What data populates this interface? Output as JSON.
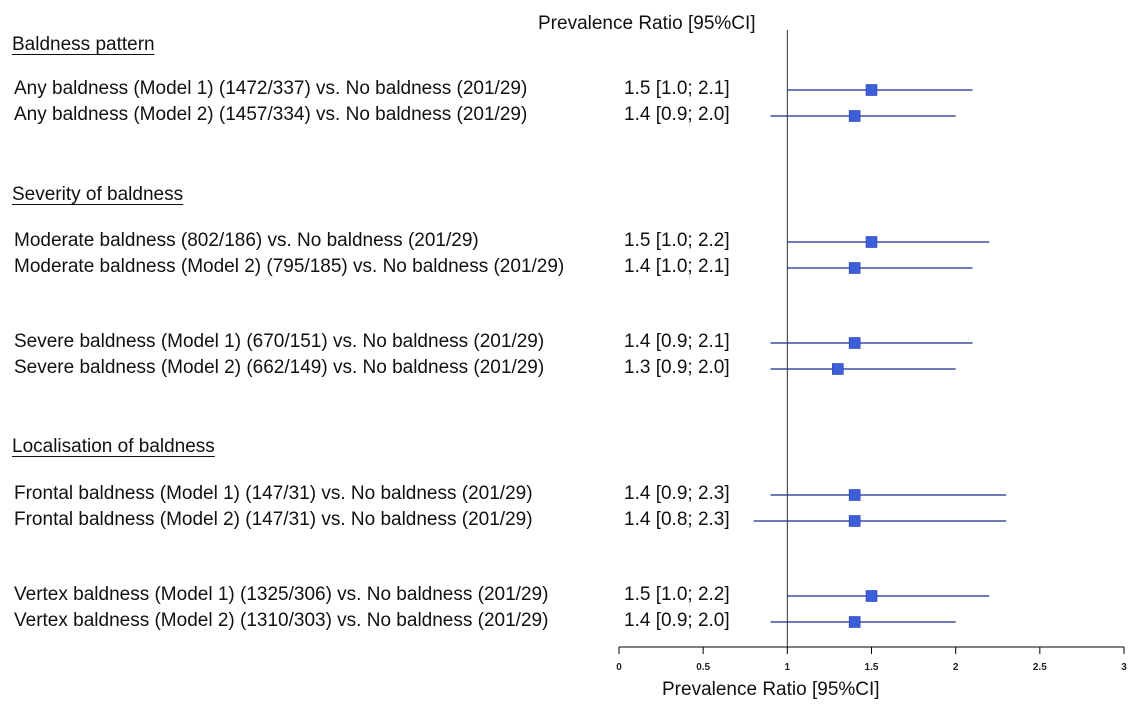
{
  "chart_data": {
    "type": "forest",
    "title": "Prevalence Ratio [95%CI]",
    "xlabel": "Prevalence Ratio [95%CI]",
    "xlim": [
      0,
      3
    ],
    "xticks": [
      "0",
      "0.5",
      "1",
      "1.5",
      "2",
      "2.5",
      "3"
    ],
    "reference_line": 1,
    "marker_color": "#3a5fd9",
    "line_color": "#1a2a8a",
    "sections": [
      {
        "heading": "Baldness pattern",
        "rows": [
          {
            "label": "Any baldness (Model 1) (1472/337) vs. No baldness (201/29)",
            "ci_text": "1.5 [1.0; 2.1]",
            "pr": 1.5,
            "lo": 1.0,
            "hi": 2.1
          },
          {
            "label": "Any baldness (Model 2) (1457/334) vs. No baldness (201/29)",
            "ci_text": "1.4 [0.9; 2.0]",
            "pr": 1.4,
            "lo": 0.9,
            "hi": 2.0
          }
        ]
      },
      {
        "heading": "Severity of baldness",
        "rows": [
          {
            "label": "Moderate baldness (802/186) vs. No baldness (201/29)",
            "ci_text": "1.5 [1.0; 2.2]",
            "pr": 1.5,
            "lo": 1.0,
            "hi": 2.2
          },
          {
            "label": "Moderate baldness (Model 2) (795/185) vs. No baldness (201/29)",
            "ci_text": "1.4 [1.0; 2.1]",
            "pr": 1.4,
            "lo": 1.0,
            "hi": 2.1
          },
          {
            "label": "Severe baldness (Model 1) (670/151) vs. No baldness (201/29)",
            "ci_text": "1.4 [0.9; 2.1]",
            "pr": 1.4,
            "lo": 0.9,
            "hi": 2.1
          },
          {
            "label": "Severe baldness (Model 2) (662/149) vs. No baldness (201/29)",
            "ci_text": "1.3 [0.9; 2.0]",
            "pr": 1.3,
            "lo": 0.9,
            "hi": 2.0
          }
        ]
      },
      {
        "heading": "Localisation of baldness",
        "rows": [
          {
            "label": "Frontal baldness (Model 1) (147/31) vs. No baldness (201/29)",
            "ci_text": "1.4 [0.9; 2.3]",
            "pr": 1.4,
            "lo": 0.9,
            "hi": 2.3
          },
          {
            "label": "Frontal baldness (Model 2) (147/31) vs. No baldness (201/29)",
            "ci_text": "1.4 [0.8; 2.3]",
            "pr": 1.4,
            "lo": 0.8,
            "hi": 2.3
          },
          {
            "label": "Vertex baldness (Model 1) (1325/306) vs. No baldness (201/29)",
            "ci_text": "1.5 [1.0; 2.2]",
            "pr": 1.5,
            "lo": 1.0,
            "hi": 2.2
          },
          {
            "label": "Vertex baldness (Model 2) (1310/303) vs. No baldness (201/29)",
            "ci_text": "1.4 [0.9; 2.0]",
            "pr": 1.4,
            "lo": 0.9,
            "hi": 2.0
          }
        ]
      }
    ]
  }
}
